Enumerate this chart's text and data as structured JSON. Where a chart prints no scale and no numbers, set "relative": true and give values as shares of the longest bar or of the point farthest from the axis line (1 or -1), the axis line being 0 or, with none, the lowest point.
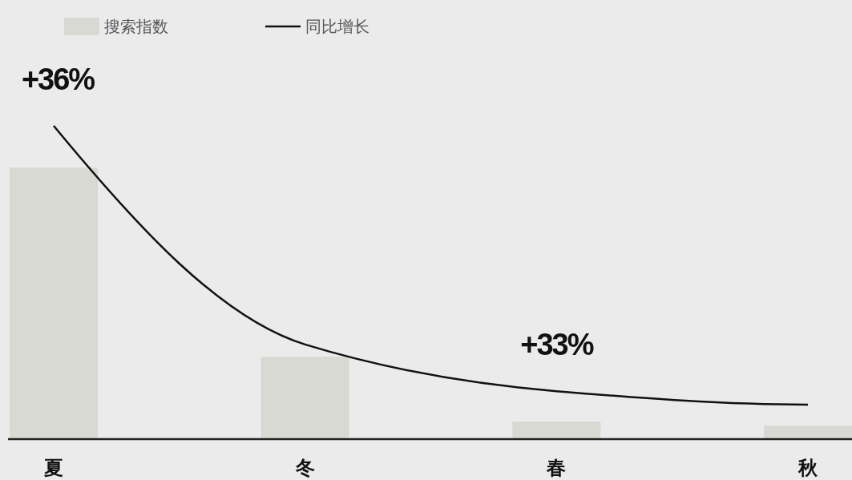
{
  "chart_data": {
    "type": "bar",
    "relative": true,
    "categories": [
      "夏",
      "冬",
      "春",
      "秋"
    ],
    "series": [
      {
        "name": "搜索指数",
        "type": "bar",
        "color": "#d9d9d3",
        "values": [
          0.867,
          0.263,
          0.056,
          0.043
        ]
      },
      {
        "name": "同比增长",
        "type": "line",
        "color": "#111111",
        "values": [
          1,
          0.302,
          0.153,
          0.11
        ]
      }
    ],
    "annotations": [
      {
        "text": "+36%",
        "x": "夏",
        "y": 1
      },
      {
        "text": "+33%",
        "x": "春",
        "y": 0.153
      }
    ],
    "legend": "top left"
  }
}
